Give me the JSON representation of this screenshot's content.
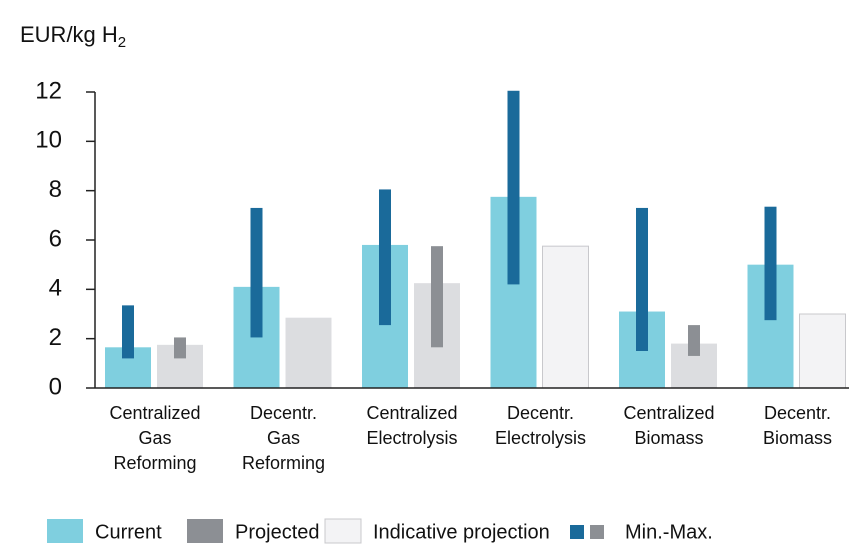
{
  "chart_data": {
    "type": "bar",
    "ylabel": "EUR/kg H",
    "ylabel_sub": "2",
    "categories": [
      [
        "Centralized",
        "Gas",
        "Reforming"
      ],
      [
        "Decentr.",
        "Gas",
        "Reforming"
      ],
      [
        "Centralized",
        "Electrolysis"
      ],
      [
        "Decentr.",
        "Electrolysis"
      ],
      [
        "Centralized",
        "Biomass"
      ],
      [
        "Decentr.",
        "Biomass"
      ]
    ],
    "series": [
      {
        "name": "Current",
        "color": "#7fcfdf",
        "range_color": "#1a6a9a",
        "values": [
          1.65,
          4.1,
          5.8,
          7.75,
          3.1,
          5.0
        ],
        "min": [
          1.2,
          2.05,
          2.55,
          4.2,
          1.5,
          2.75
        ],
        "max": [
          3.35,
          7.3,
          8.05,
          12.05,
          7.3,
          7.35
        ]
      },
      {
        "name": "Projected",
        "color": "#dcdde0",
        "range_color": "#8c8f94",
        "values": [
          1.75,
          2.85,
          4.25,
          null,
          1.8,
          null
        ],
        "min": [
          1.2,
          null,
          1.65,
          null,
          1.3,
          null
        ],
        "max": [
          2.05,
          null,
          5.75,
          null,
          2.55,
          null
        ]
      },
      {
        "name": "Indicative projection",
        "color": "#f3f3f5",
        "values": [
          null,
          null,
          null,
          5.75,
          null,
          3.0
        ]
      }
    ],
    "range_legend": "Min.-Max.",
    "ylim": [
      0,
      12
    ],
    "yticks": [
      0,
      2,
      4,
      6,
      8,
      10,
      12
    ],
    "grid": false
  }
}
